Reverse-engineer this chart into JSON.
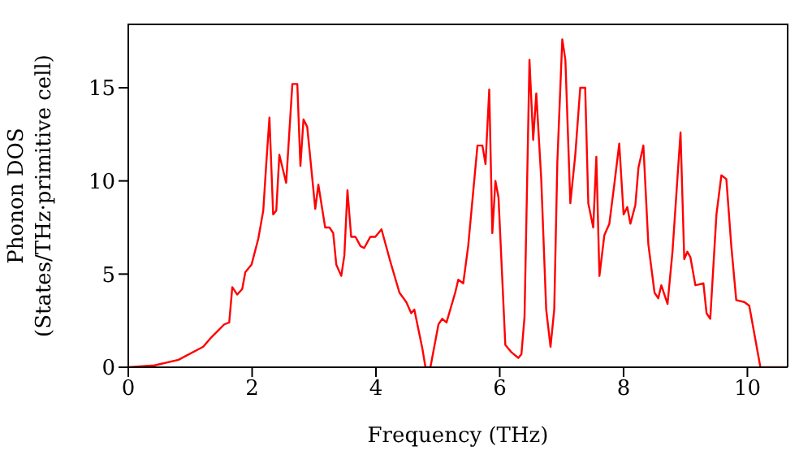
{
  "chart_data": {
    "type": "line",
    "xlabel": "Frequency (THz)",
    "ylabel": "Phonon DOS\n(States/THz·primitive cell)",
    "xlim": [
      0,
      10.65
    ],
    "xticks": [
      0,
      2,
      4,
      6,
      8,
      10
    ],
    "ylim": [
      0,
      18.4
    ],
    "yticks": [
      0,
      5,
      10,
      15
    ],
    "marker": "none",
    "line_style": "solid",
    "x": [
      0,
      0.42,
      0.81,
      1.21,
      1.34,
      1.55,
      1.63,
      1.68,
      1.76,
      1.84,
      1.89,
      1.99,
      2.1,
      2.18,
      2.23,
      2.28,
      2.34,
      2.39,
      2.44,
      2.55,
      2.65,
      2.73,
      2.78,
      2.83,
      2.89,
      3.02,
      3.07,
      3.18,
      3.25,
      3.31,
      3.36,
      3.44,
      3.49,
      3.54,
      3.6,
      3.67,
      3.75,
      3.81,
      3.91,
      3.99,
      4.09,
      4.23,
      4.38,
      4.49,
      4.57,
      4.62,
      4.75,
      4.8,
      4.88,
      5.01,
      5.07,
      5.14,
      5.28,
      5.33,
      5.41,
      5.49,
      5.64,
      5.72,
      5.77,
      5.83,
      5.88,
      5.93,
      5.98,
      6.09,
      6.19,
      6.3,
      6.35,
      6.4,
      6.48,
      6.54,
      6.59,
      6.67,
      6.75,
      6.82,
      6.88,
      6.93,
      7.01,
      7.06,
      7.14,
      7.22,
      7.3,
      7.38,
      7.43,
      7.51,
      7.56,
      7.61,
      7.69,
      7.77,
      7.85,
      7.93,
      8.0,
      8.06,
      8.11,
      8.19,
      8.24,
      8.32,
      8.4,
      8.5,
      8.56,
      8.61,
      8.71,
      8.79,
      8.92,
      8.98,
      9.03,
      9.08,
      9.16,
      9.29,
      9.34,
      9.4,
      9.5,
      9.58,
      9.66,
      9.74,
      9.82,
      9.95,
      10.03,
      10.21,
      10.65
    ],
    "series": [
      {
        "color": "#ff0000",
        "values": [
          0,
          0.1,
          0.4,
          1.1,
          1.6,
          2.3,
          2.4,
          4.3,
          3.9,
          4.2,
          5.1,
          5.5,
          6.9,
          8.4,
          11,
          13.4,
          8.2,
          8.4,
          11.4,
          9.9,
          15.2,
          15.2,
          10.8,
          13.3,
          12.9,
          8.5,
          9.8,
          7.5,
          7.5,
          7.2,
          5.5,
          4.9,
          6.0,
          9.5,
          7.0,
          7.0,
          6.5,
          6.4,
          7.0,
          7.0,
          7.4,
          5.7,
          4.0,
          3.5,
          2.9,
          3.1,
          1.0,
          0,
          0,
          2.3,
          2.6,
          2.4,
          4.0,
          4.7,
          4.5,
          6.5,
          11.9,
          11.9,
          10.9,
          14.9,
          7.2,
          10.0,
          9.1,
          1.2,
          0.8,
          0.5,
          0.7,
          2.7,
          16.5,
          12.2,
          14.7,
          10.1,
          3.1,
          1.1,
          3.1,
          11,
          17.6,
          16.5,
          8.8,
          11.4,
          15,
          15,
          8.8,
          7.5,
          11.3,
          4.9,
          7.1,
          7.7,
          9.8,
          12.0,
          8.2,
          8.6,
          7.7,
          8.7,
          10.7,
          11.9,
          6.6,
          4.0,
          3.7,
          4.4,
          3.4,
          6.2,
          12.6,
          5.8,
          6.2,
          5.9,
          4.4,
          4.5,
          2.9,
          2.6,
          8.2,
          10.3,
          10.1,
          6.5,
          3.6,
          3.5,
          3.3,
          0,
          0
        ]
      }
    ]
  }
}
